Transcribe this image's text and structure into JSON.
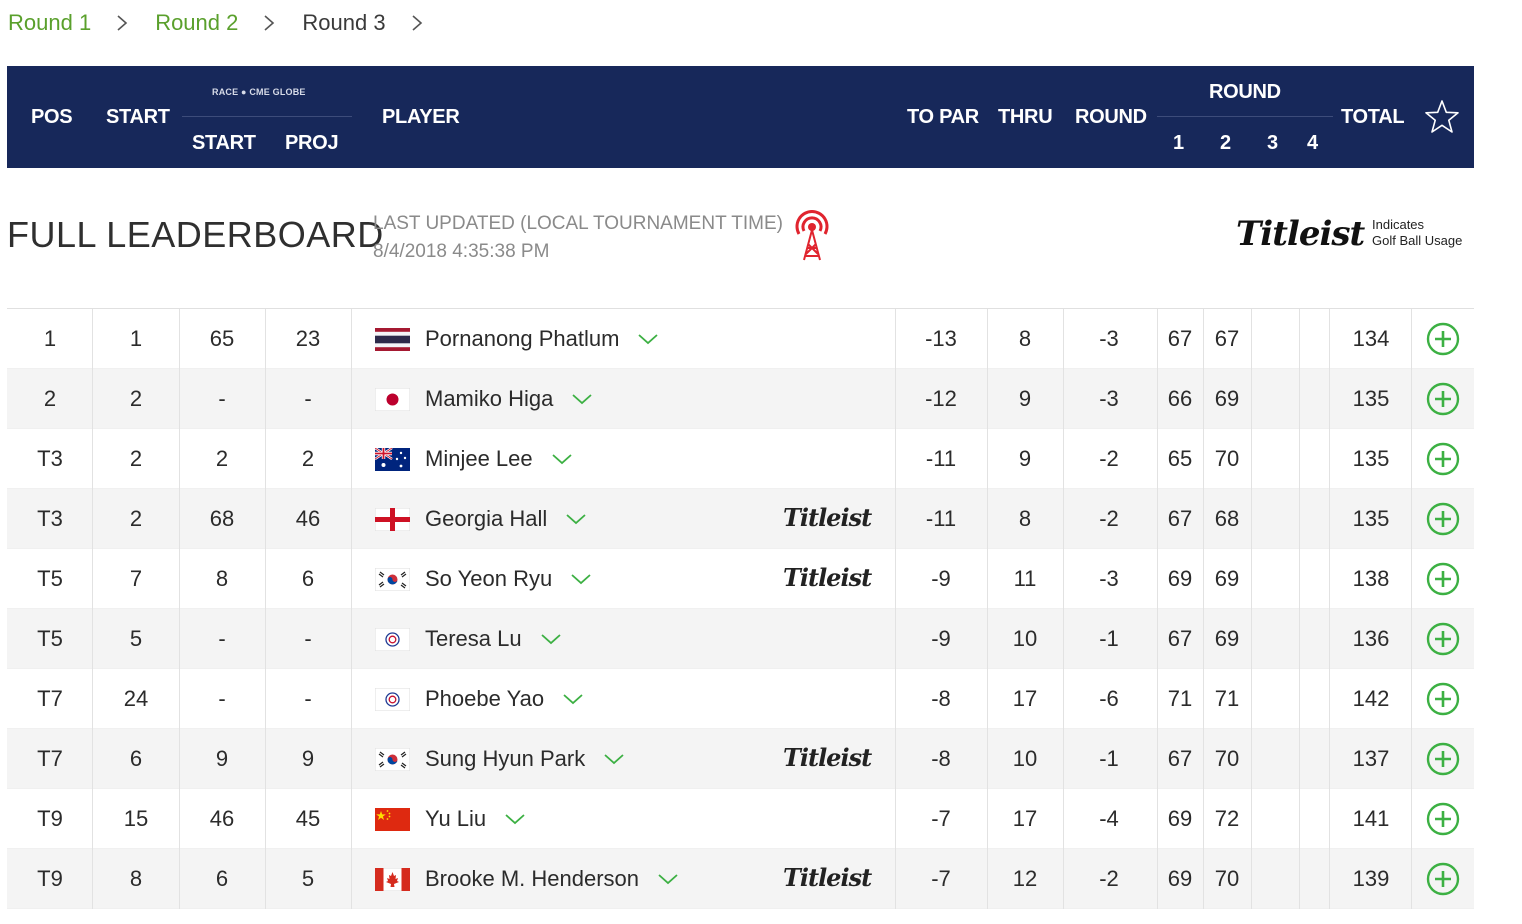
{
  "breadcrumb": [
    {
      "label": "Round 1",
      "current": false
    },
    {
      "label": "Round 2",
      "current": false
    },
    {
      "label": "Round 3",
      "current": true
    }
  ],
  "header": {
    "pos": "POS",
    "start": "START",
    "race_logo_text": "RACE ● CME GLOBE",
    "race_start": "START",
    "race_proj": "PROJ",
    "player": "PLAYER",
    "to_par": "TO PAR",
    "thru": "THRU",
    "round": "ROUND",
    "round_group": "ROUND",
    "round_numbers": [
      "1",
      "2",
      "3",
      "4"
    ],
    "total": "TOTAL"
  },
  "title": "FULL LEADERBOARD",
  "last_updated_label": "LAST UPDATED (LOCAL TOURNAMENT TIME)",
  "last_updated_value": "8/4/2018 4:35:38 PM",
  "titleist_logo": "Titleist",
  "titleist_note_line1": "Indicates",
  "titleist_note_line2": "Golf Ball Usage",
  "colors": {
    "header_bg": "#17285a",
    "accent_green": "#3cb043",
    "link_green": "#5aa02c"
  },
  "players": [
    {
      "pos": "1",
      "start": "1",
      "race_start": "65",
      "race_proj": "23",
      "country": "thailand",
      "name": "Pornanong Phatlum",
      "titleist": false,
      "to_par": "-13",
      "thru": "8",
      "round": "-3",
      "r1": "67",
      "r2": "67",
      "r3": "",
      "r4": "",
      "total": "134"
    },
    {
      "pos": "2",
      "start": "2",
      "race_start": "-",
      "race_proj": "-",
      "country": "japan",
      "name": "Mamiko Higa",
      "titleist": false,
      "to_par": "-12",
      "thru": "9",
      "round": "-3",
      "r1": "66",
      "r2": "69",
      "r3": "",
      "r4": "",
      "total": "135"
    },
    {
      "pos": "T3",
      "start": "2",
      "race_start": "2",
      "race_proj": "2",
      "country": "australia",
      "name": "Minjee Lee",
      "titleist": false,
      "to_par": "-11",
      "thru": "9",
      "round": "-2",
      "r1": "65",
      "r2": "70",
      "r3": "",
      "r4": "",
      "total": "135"
    },
    {
      "pos": "T3",
      "start": "2",
      "race_start": "68",
      "race_proj": "46",
      "country": "england",
      "name": "Georgia Hall",
      "titleist": true,
      "to_par": "-11",
      "thru": "8",
      "round": "-2",
      "r1": "67",
      "r2": "68",
      "r3": "",
      "r4": "",
      "total": "135"
    },
    {
      "pos": "T5",
      "start": "7",
      "race_start": "8",
      "race_proj": "6",
      "country": "korea",
      "name": "So Yeon Ryu",
      "titleist": true,
      "to_par": "-9",
      "thru": "11",
      "round": "-3",
      "r1": "69",
      "r2": "69",
      "r3": "",
      "r4": "",
      "total": "138"
    },
    {
      "pos": "T5",
      "start": "5",
      "race_start": "-",
      "race_proj": "-",
      "country": "chinese-taipei",
      "name": "Teresa Lu",
      "titleist": false,
      "to_par": "-9",
      "thru": "10",
      "round": "-1",
      "r1": "67",
      "r2": "69",
      "r3": "",
      "r4": "",
      "total": "136"
    },
    {
      "pos": "T7",
      "start": "24",
      "race_start": "-",
      "race_proj": "-",
      "country": "chinese-taipei",
      "name": "Phoebe Yao",
      "titleist": false,
      "to_par": "-8",
      "thru": "17",
      "round": "-6",
      "r1": "71",
      "r2": "71",
      "r3": "",
      "r4": "",
      "total": "142"
    },
    {
      "pos": "T7",
      "start": "6",
      "race_start": "9",
      "race_proj": "9",
      "country": "korea",
      "name": "Sung Hyun Park",
      "titleist": true,
      "to_par": "-8",
      "thru": "10",
      "round": "-1",
      "r1": "67",
      "r2": "70",
      "r3": "",
      "r4": "",
      "total": "137"
    },
    {
      "pos": "T9",
      "start": "15",
      "race_start": "46",
      "race_proj": "45",
      "country": "china",
      "name": "Yu Liu",
      "titleist": false,
      "to_par": "-7",
      "thru": "17",
      "round": "-4",
      "r1": "69",
      "r2": "72",
      "r3": "",
      "r4": "",
      "total": "141"
    },
    {
      "pos": "T9",
      "start": "8",
      "race_start": "6",
      "race_proj": "5",
      "country": "canada",
      "name": "Brooke M. Henderson",
      "titleist": true,
      "to_par": "-7",
      "thru": "12",
      "round": "-2",
      "r1": "69",
      "r2": "70",
      "r3": "",
      "r4": "",
      "total": "139"
    }
  ]
}
